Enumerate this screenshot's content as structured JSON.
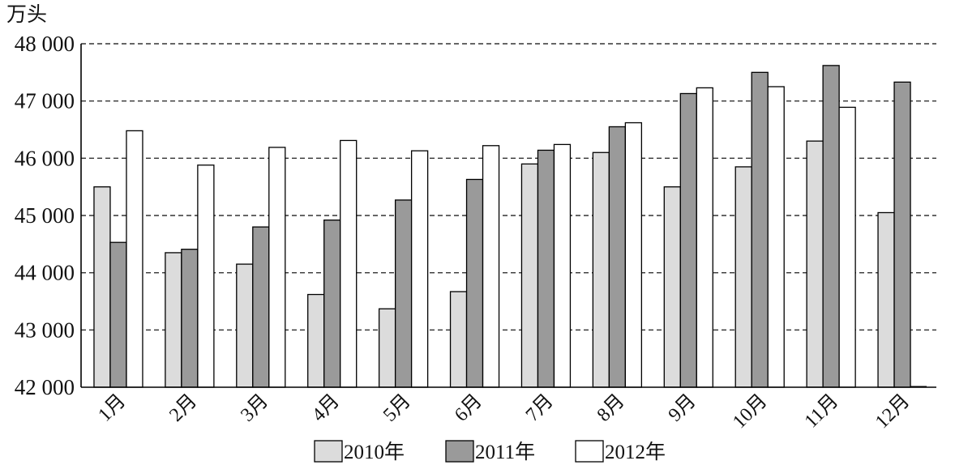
{
  "chart_data": {
    "type": "bar",
    "ylabel": "万头",
    "ylim": [
      42000,
      48000
    ],
    "ytick_step": 1000,
    "ytick_labels": [
      "42 000",
      "43 000",
      "44 000",
      "45 000",
      "46 000",
      "47 000",
      "48 000"
    ],
    "grid": "horizontal dashed",
    "legend_position": "bottom",
    "categories": [
      "1月",
      "2月",
      "3月",
      "4月",
      "5月",
      "6月",
      "7月",
      "8月",
      "9月",
      "10月",
      "11月",
      "12月"
    ],
    "series": [
      {
        "name": "2010年",
        "color": "#dcdcdc",
        "values": [
          45500,
          44350,
          44150,
          43620,
          43370,
          43670,
          45900,
          46100,
          45500,
          45850,
          46300,
          45050
        ]
      },
      {
        "name": "2011年",
        "color": "#9a9a9a",
        "values": [
          44530,
          44410,
          44800,
          44920,
          45270,
          45630,
          46140,
          46550,
          47130,
          47500,
          47620,
          47330
        ]
      },
      {
        "name": "2012年",
        "color": "#ffffff",
        "values": [
          46480,
          45880,
          46190,
          46310,
          46130,
          46220,
          46240,
          46620,
          47230,
          47250,
          46890,
          42000
        ]
      }
    ]
  }
}
